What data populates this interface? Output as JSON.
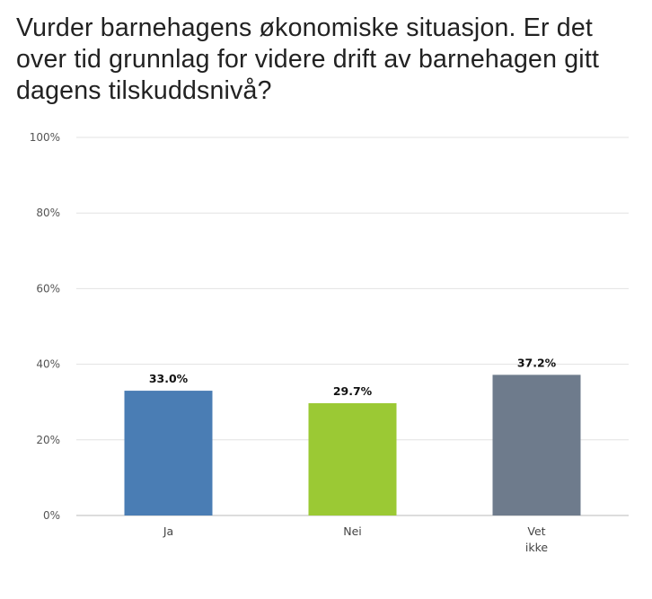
{
  "chart_data": {
    "type": "bar",
    "title": "Vurder barnehagens økonomiske situasjon. Er det over tid grunnlag for videre drift av barnehagen gitt dagens tilskuddsnivå?",
    "categories": [
      [
        "Ja"
      ],
      [
        "Nei"
      ],
      [
        "Vet",
        "ikke"
      ]
    ],
    "values": [
      33.0,
      29.7,
      37.2
    ],
    "data_labels": [
      "33.0%",
      "29.7%",
      "37.2%"
    ],
    "colors": [
      "#4a7db4",
      "#9bc934",
      "#6e7b8c"
    ],
    "ylim": [
      0,
      100
    ],
    "yticks": [
      0,
      20,
      40,
      60,
      80,
      100
    ],
    "ytick_labels": [
      "0%",
      "20%",
      "40%",
      "60%",
      "80%",
      "100%"
    ],
    "xlabel": "",
    "ylabel": "",
    "grid": true
  }
}
